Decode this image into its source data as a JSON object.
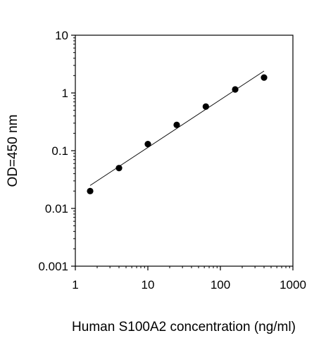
{
  "chart_data": {
    "type": "scatter",
    "title": "",
    "xlabel": "Human S100A2 concentration (ng/ml)",
    "ylabel": "OD=450 nm",
    "xscale": "log",
    "yscale": "log",
    "xlim": [
      1,
      1000
    ],
    "ylim": [
      0.001,
      10
    ],
    "x_ticks": [
      {
        "value": 1,
        "label": "1"
      },
      {
        "value": 10,
        "label": "10"
      },
      {
        "value": 100,
        "label": "100"
      },
      {
        "value": 1000,
        "label": "1000"
      }
    ],
    "y_ticks": [
      {
        "value": 0.001,
        "label": "0.001"
      },
      {
        "value": 0.01,
        "label": "0.01"
      },
      {
        "value": 0.1,
        "label": "0.1"
      },
      {
        "value": 1,
        "label": "1"
      },
      {
        "value": 10,
        "label": "10"
      }
    ],
    "grid": false,
    "legend": "none",
    "series": [
      {
        "points": [
          {
            "x": 1.6,
            "y": 0.02
          },
          {
            "x": 4.0,
            "y": 0.05
          },
          {
            "x": 10.0,
            "y": 0.13
          },
          {
            "x": 25.0,
            "y": 0.28
          },
          {
            "x": 63.0,
            "y": 0.58
          },
          {
            "x": 160.0,
            "y": 1.15
          },
          {
            "x": 400.0,
            "y": 1.85
          }
        ],
        "fit_line": {
          "x": [
            1.6,
            400.0
          ],
          "y": [
            0.025,
            2.4
          ]
        },
        "marker_color": "#000000",
        "line_color": "#000000"
      }
    ]
  }
}
